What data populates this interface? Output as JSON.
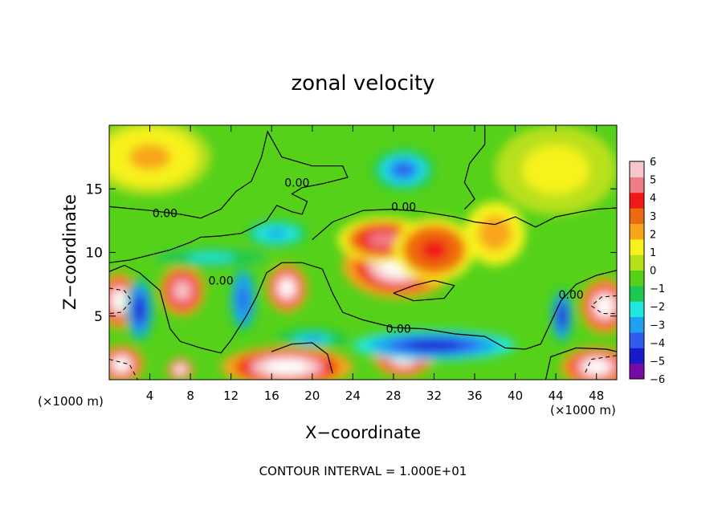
{
  "chart_data": {
    "type": "heatmap",
    "title": "zonal velocity",
    "xlabel": "X−coordinate",
    "ylabel": "Z−coordinate",
    "x_unit_left": "(×1000 m)",
    "x_unit_right": "(×1000 m)",
    "footer": "CONTOUR INTERVAL = 1.000E+01",
    "xlim": [
      0,
      50
    ],
    "ylim": [
      0,
      20
    ],
    "x_ticks": [
      4,
      8,
      12,
      16,
      20,
      24,
      28,
      32,
      36,
      40,
      44,
      48
    ],
    "x_tick_labels": [
      "4",
      "8",
      "12",
      "16",
      "20",
      "24",
      "28",
      "32",
      "36",
      "40",
      "44",
      "48"
    ],
    "y_ticks": [
      5,
      10,
      15
    ],
    "y_tick_labels": [
      "5",
      "10",
      "15"
    ],
    "contour_labels": [
      {
        "text": "0.00",
        "x": 5.5,
        "y": 13.1
      },
      {
        "text": "0.00",
        "x": 18.5,
        "y": 15.5
      },
      {
        "text": "0.00",
        "x": 29.0,
        "y": 13.6
      },
      {
        "text": "0.00",
        "x": 11.0,
        "y": 7.8
      },
      {
        "text": "0.00",
        "x": 28.5,
        "y": 4.0
      },
      {
        "text": "0.00",
        "x": 45.5,
        "y": 6.7
      }
    ],
    "colorbar": {
      "min": -6,
      "max": 6,
      "tick_labels": [
        "6",
        "5",
        "4",
        "3",
        "2",
        "1",
        "0",
        "−1",
        "−2",
        "−3",
        "−4",
        "−5",
        "−6"
      ],
      "colors": [
        "#7a0aa8",
        "#1a1acd",
        "#2f5cf0",
        "#1fa0f0",
        "#22e6e0",
        "#1ec850",
        "#55d11a",
        "#b8e01a",
        "#f7f21c",
        "#f8a51a",
        "#ee6a10",
        "#f01818",
        "#f07c88",
        "#f7c6c8"
      ]
    },
    "field_features": [
      {
        "kind": "cell",
        "x": 28.5,
        "y": 9.0,
        "value": 6.5,
        "rx": 5.5,
        "ry": 2.6
      },
      {
        "kind": "cell",
        "x": 27.0,
        "y": 11.0,
        "value": 4.5,
        "rx": 4.5,
        "ry": 1.8
      },
      {
        "kind": "cell",
        "x": 32.0,
        "y": 10.2,
        "value": 4.0,
        "rx": 4.0,
        "ry": 2.5
      },
      {
        "kind": "cell",
        "x": 7.2,
        "y": 7.0,
        "value": 5.5,
        "rx": 2.2,
        "ry": 2.0
      },
      {
        "kind": "cell",
        "x": 17.5,
        "y": 7.2,
        "value": 6.5,
        "rx": 2.0,
        "ry": 1.9
      },
      {
        "kind": "cell",
        "x": 1.0,
        "y": 6.2,
        "value": 6.5,
        "rx": 2.0,
        "ry": 2.2
      },
      {
        "kind": "cell",
        "x": 48.8,
        "y": 5.8,
        "value": 6.5,
        "rx": 2.4,
        "ry": 2.2
      },
      {
        "kind": "cell",
        "x": 17.5,
        "y": 1.0,
        "value": 6.5,
        "rx": 6.5,
        "ry": 1.6
      },
      {
        "kind": "cell",
        "x": 29.0,
        "y": 1.8,
        "value": 6.5,
        "rx": 3.0,
        "ry": 1.6
      },
      {
        "kind": "cell",
        "x": 48.0,
        "y": 1.0,
        "value": 6.5,
        "rx": 3.5,
        "ry": 1.6
      },
      {
        "kind": "cell",
        "x": 1.2,
        "y": 1.2,
        "value": 6.5,
        "rx": 2.2,
        "ry": 1.5
      },
      {
        "kind": "cell",
        "x": 7.0,
        "y": 0.8,
        "value": 6.5,
        "rx": 1.3,
        "ry": 0.9
      },
      {
        "kind": "cell",
        "x": 29.0,
        "y": 16.5,
        "value": -3.8,
        "rx": 3.0,
        "ry": 1.6
      },
      {
        "kind": "cell",
        "x": 16.5,
        "y": 11.5,
        "value": -3.0,
        "rx": 3.0,
        "ry": 1.0
      },
      {
        "kind": "cell",
        "x": 3.0,
        "y": 5.5,
        "value": -4.5,
        "rx": 1.4,
        "ry": 2.6
      },
      {
        "kind": "cell",
        "x": 13.2,
        "y": 6.3,
        "value": -4.0,
        "rx": 1.3,
        "ry": 2.6
      },
      {
        "kind": "cell",
        "x": 32.0,
        "y": 2.7,
        "value": -5.0,
        "rx": 8.0,
        "ry": 1.2
      },
      {
        "kind": "cell",
        "x": 44.6,
        "y": 5.0,
        "value": -4.5,
        "rx": 1.1,
        "ry": 2.2
      },
      {
        "kind": "cell",
        "x": 10.0,
        "y": 9.6,
        "value": -1.8,
        "rx": 7.0,
        "ry": 0.9
      },
      {
        "kind": "cell",
        "x": 20.0,
        "y": 3.2,
        "value": -2.6,
        "rx": 3.5,
        "ry": 0.8
      },
      {
        "kind": "cell",
        "x": 4.0,
        "y": 17.5,
        "value": 1.8,
        "rx": 6.0,
        "ry": 3.0
      },
      {
        "kind": "cell",
        "x": 44.0,
        "y": 16.5,
        "value": 1.2,
        "rx": 6.0,
        "ry": 3.5
      },
      {
        "kind": "cell",
        "x": 38.0,
        "y": 11.5,
        "value": 2.5,
        "rx": 3.0,
        "ry": 2.5
      }
    ]
  }
}
